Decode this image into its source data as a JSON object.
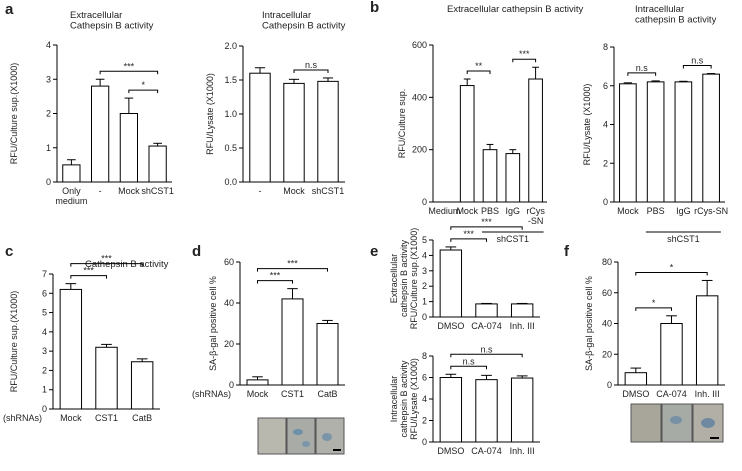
{
  "chart_data": [
    {
      "type": "bar",
      "panel": "a",
      "title": "Extracellular\nCathepsin B activity",
      "ylabel": "RFU/Culture sup.(X1000)",
      "categories": [
        "Only\nmedium",
        "-",
        "Mock",
        "shCST1"
      ],
      "values": [
        0.5,
        2.8,
        2.0,
        1.05
      ],
      "errors": [
        0.15,
        0.2,
        0.45,
        0.08
      ],
      "ylim": [
        0,
        4
      ],
      "yticks": [
        0,
        1,
        2,
        3,
        4
      ],
      "annotations": [
        {
          "text": "*",
          "from": "Mock",
          "to": "shCST1"
        },
        {
          "text": "***",
          "from": "-",
          "to": "shCST1"
        }
      ]
    },
    {
      "type": "bar",
      "title": "Intracellular\nCathepsin B activity",
      "ylabel": "RFU/Lysate (X1000)",
      "categories": [
        "-",
        "Mock",
        "shCST1"
      ],
      "values": [
        1.6,
        1.45,
        1.48
      ],
      "errors": [
        0.08,
        0.06,
        0.05
      ],
      "ylim": [
        0,
        2
      ],
      "yticks": [
        {
          "value": 0,
          "label": "0.0"
        },
        {
          "value": 0.5,
          "label": "0.5"
        },
        {
          "value": 1,
          "label": "1.0"
        },
        {
          "value": 1.5,
          "label": "1.5"
        },
        {
          "value": 2,
          "label": "2.0"
        }
      ],
      "annotations": [
        {
          "text": "n.s",
          "from": "Mock",
          "to": "shCST1"
        }
      ]
    },
    {
      "type": "bar",
      "panel": "b",
      "title": "Extracellular cathepsin B activity",
      "ylabel": "RFU/Culture sup.",
      "categories": [
        "Medium",
        "Mock",
        "PBS",
        "IgG",
        "rCys\n-SN"
      ],
      "values": [
        0,
        445,
        200,
        185,
        470
      ],
      "errors": [
        0,
        25,
        20,
        15,
        45
      ],
      "ylim": [
        0,
        600
      ],
      "yticks": [
        0,
        200,
        400,
        600
      ],
      "annotations": [
        {
          "text": "**",
          "from": "Mock",
          "to": "PBS"
        },
        {
          "text": "***",
          "from": "IgG",
          "to": "rCys\n-SN"
        }
      ],
      "group": {
        "label": "shCST1",
        "from": "PBS",
        "to": "rCys\n-SN"
      }
    },
    {
      "type": "bar",
      "title": "Intracellular\ncathepsin B activity",
      "ylabel": "RFU/Lysate (X1000)",
      "categories": [
        "Mock",
        "PBS",
        "IgG",
        "rCys-SN"
      ],
      "values": [
        6.1,
        6.2,
        6.2,
        6.6
      ],
      "errors": [
        0.05,
        0.05,
        0.03,
        0.03
      ],
      "ylim": [
        0,
        8
      ],
      "yticks": [
        0,
        2,
        4,
        6,
        8
      ],
      "annotations": [
        {
          "text": "n.s",
          "from": "Mock",
          "to": "PBS"
        },
        {
          "text": "n.s",
          "from": "IgG",
          "to": "rCys-SN"
        }
      ],
      "group": {
        "label": "shCST1",
        "from": "PBS",
        "to": "rCys-SN"
      }
    },
    {
      "type": "bar",
      "panel": "c",
      "title": "Cathepsin B activity",
      "ylabel": "RFU/Culture sup.(X1000)",
      "row_label": "(shRNAs)",
      "categories": [
        "Mock",
        "CST1",
        "CatB"
      ],
      "values": [
        6.2,
        3.2,
        2.45
      ],
      "errors": [
        0.3,
        0.15,
        0.15
      ],
      "ylim": [
        0,
        7
      ],
      "yticks": [
        0,
        1,
        2,
        3,
        4,
        5,
        6,
        7
      ],
      "annotations": [
        {
          "text": "***",
          "from": "Mock",
          "to": "CST1"
        },
        {
          "text": "***",
          "from": "Mock",
          "to": "CatB"
        }
      ]
    },
    {
      "type": "bar",
      "panel": "d",
      "ylabel": "SA-β-gal positive cell %",
      "row_label": "(shRNAs)",
      "categories": [
        "Mock",
        "CST1",
        "CatB"
      ],
      "values": [
        2.5,
        42,
        30
      ],
      "errors": [
        1.5,
        5,
        1.5
      ],
      "ylim": [
        0,
        60
      ],
      "yticks": [
        0,
        20,
        40,
        60
      ],
      "annotations": [
        {
          "text": "***",
          "from": "Mock",
          "to": "CST1"
        },
        {
          "text": "***",
          "from": "Mock",
          "to": "CatB"
        }
      ]
    },
    {
      "type": "bar",
      "panel": "e",
      "ylabel": "Extracellular\ncathepsin B activity\nRFU/Culture sup.(X1000)",
      "categories": [
        "DMSO",
        "CA-074",
        "Inh. III"
      ],
      "values": [
        4.35,
        0.85,
        0.85
      ],
      "errors": [
        0.2,
        0.03,
        0.03
      ],
      "ylim": [
        0,
        5
      ],
      "yticks": [
        0,
        1,
        2,
        3,
        4,
        5
      ],
      "annotations": [
        {
          "text": "***",
          "from": "DMSO",
          "to": "CA-074"
        },
        {
          "text": "***",
          "from": "DMSO",
          "to": "Inh. III"
        }
      ]
    },
    {
      "type": "bar",
      "ylabel": "Intracellular\ncathepsin B activity\nRFU/Lysate (X1000)",
      "categories": [
        "DMSO",
        "CA-074",
        "Inh. III"
      ],
      "values": [
        6.0,
        5.8,
        5.95
      ],
      "errors": [
        0.3,
        0.4,
        0.2
      ],
      "ylim": [
        0,
        8
      ],
      "yticks": [
        0,
        2,
        4,
        6,
        8
      ],
      "annotations": [
        {
          "text": "n.s",
          "from": "DMSO",
          "to": "CA-074"
        },
        {
          "text": "n.s",
          "from": "DMSO",
          "to": "Inh. III"
        }
      ]
    },
    {
      "type": "bar",
      "panel": "f",
      "ylabel": "SA-β-gal positive cell %",
      "categories": [
        "DMSO",
        "CA-074",
        "Inh. III"
      ],
      "values": [
        8,
        40,
        58
      ],
      "errors": [
        3,
        5,
        10
      ],
      "ylim": [
        0,
        80
      ],
      "yticks": [
        0,
        20,
        40,
        60,
        80
      ],
      "annotations": [
        {
          "text": "*",
          "from": "DMSO",
          "to": "CA-074"
        },
        {
          "text": "*",
          "from": "DMSO",
          "to": "Inh. III"
        }
      ]
    }
  ]
}
